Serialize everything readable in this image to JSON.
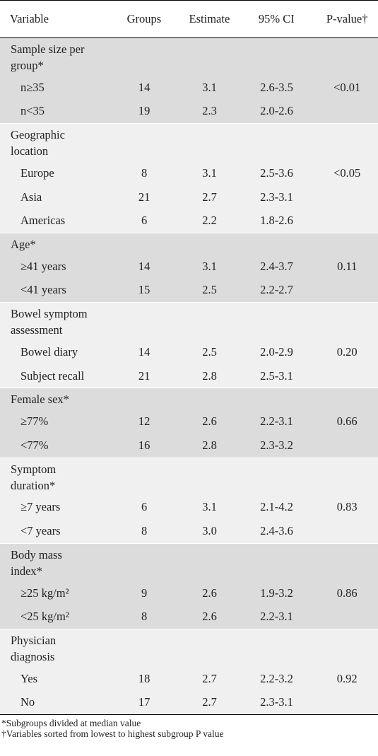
{
  "header": {
    "variable": "Variable",
    "groups": "Groups",
    "estimate": "Estimate",
    "ci": "95% CI",
    "pvalue": "P-value†"
  },
  "groups": [
    {
      "title_l1": "Sample size per",
      "title_l2": "group*",
      "shade": "gray",
      "rows": [
        {
          "label": "n≥35",
          "groups": "14",
          "estimate": "3.1",
          "ci": "2.6-3.5",
          "p": "<0.01"
        },
        {
          "label": "n<35",
          "groups": "19",
          "estimate": "2.3",
          "ci": "2.0-2.6",
          "p": ""
        }
      ]
    },
    {
      "title_l1": "Geographic",
      "title_l2": "location",
      "shade": "light",
      "rows": [
        {
          "label": "Europe",
          "groups": "8",
          "estimate": "3.1",
          "ci": "2.5-3.6",
          "p": "<0.05"
        },
        {
          "label": "Asia",
          "groups": "21",
          "estimate": "2.7",
          "ci": "2.3-3.1",
          "p": ""
        },
        {
          "label": "Americas",
          "groups": "6",
          "estimate": "2.2",
          "ci": "1.8-2.6",
          "p": ""
        }
      ]
    },
    {
      "title_l1": "Age*",
      "title_l2": "",
      "shade": "gray",
      "rows": [
        {
          "label": "≥41 years",
          "groups": "14",
          "estimate": "3.1",
          "ci": "2.4-3.7",
          "p": "0.11"
        },
        {
          "label": "<41 years",
          "groups": "15",
          "estimate": "2.5",
          "ci": "2.2-2.7",
          "p": ""
        }
      ]
    },
    {
      "title_l1": "Bowel symptom",
      "title_l2": "assessment",
      "shade": "light",
      "rows": [
        {
          "label": "Bowel diary",
          "groups": "14",
          "estimate": "2.5",
          "ci": "2.0-2.9",
          "p": "0.20"
        },
        {
          "label": "Subject recall",
          "groups": "21",
          "estimate": "2.8",
          "ci": "2.5-3.1",
          "p": ""
        }
      ]
    },
    {
      "title_l1": "Female sex*",
      "title_l2": "",
      "shade": "gray",
      "rows": [
        {
          "label": "≥77%",
          "groups": "12",
          "estimate": "2.6",
          "ci": "2.2-3.1",
          "p": "0.66"
        },
        {
          "label": "<77%",
          "groups": "16",
          "estimate": "2.8",
          "ci": "2.3-3.2",
          "p": ""
        }
      ]
    },
    {
      "title_l1": "Symptom",
      "title_l2": "duration*",
      "shade": "light",
      "rows": [
        {
          "label": "≥7 years",
          "groups": "6",
          "estimate": "3.1",
          "ci": "2.1-4.2",
          "p": "0.83"
        },
        {
          "label": "<7 years",
          "groups": "8",
          "estimate": "3.0",
          "ci": "2.4-3.6",
          "p": ""
        }
      ]
    },
    {
      "title_l1": "Body mass",
      "title_l2": "index*",
      "shade": "gray",
      "rows": [
        {
          "label": "≥25 kg/m²",
          "groups": "9",
          "estimate": "2.6",
          "ci": "1.9-3.2",
          "p": "0.86"
        },
        {
          "label": "<25 kg/m²",
          "groups": "8",
          "estimate": "2.6",
          "ci": "2.2-3.1",
          "p": ""
        }
      ]
    },
    {
      "title_l1": "Physician",
      "title_l2": "diagnosis",
      "shade": "light",
      "rows": [
        {
          "label": "Yes",
          "groups": "18",
          "estimate": "2.7",
          "ci": "2.2-3.2",
          "p": "0.92"
        },
        {
          "label": "No",
          "groups": "17",
          "estimate": "2.7",
          "ci": "2.3-3.1",
          "p": ""
        }
      ]
    }
  ],
  "footnotes": {
    "note1": "*Subgroups divided at median value",
    "note2": "†Variables sorted from lowest to highest subgroup P value"
  }
}
